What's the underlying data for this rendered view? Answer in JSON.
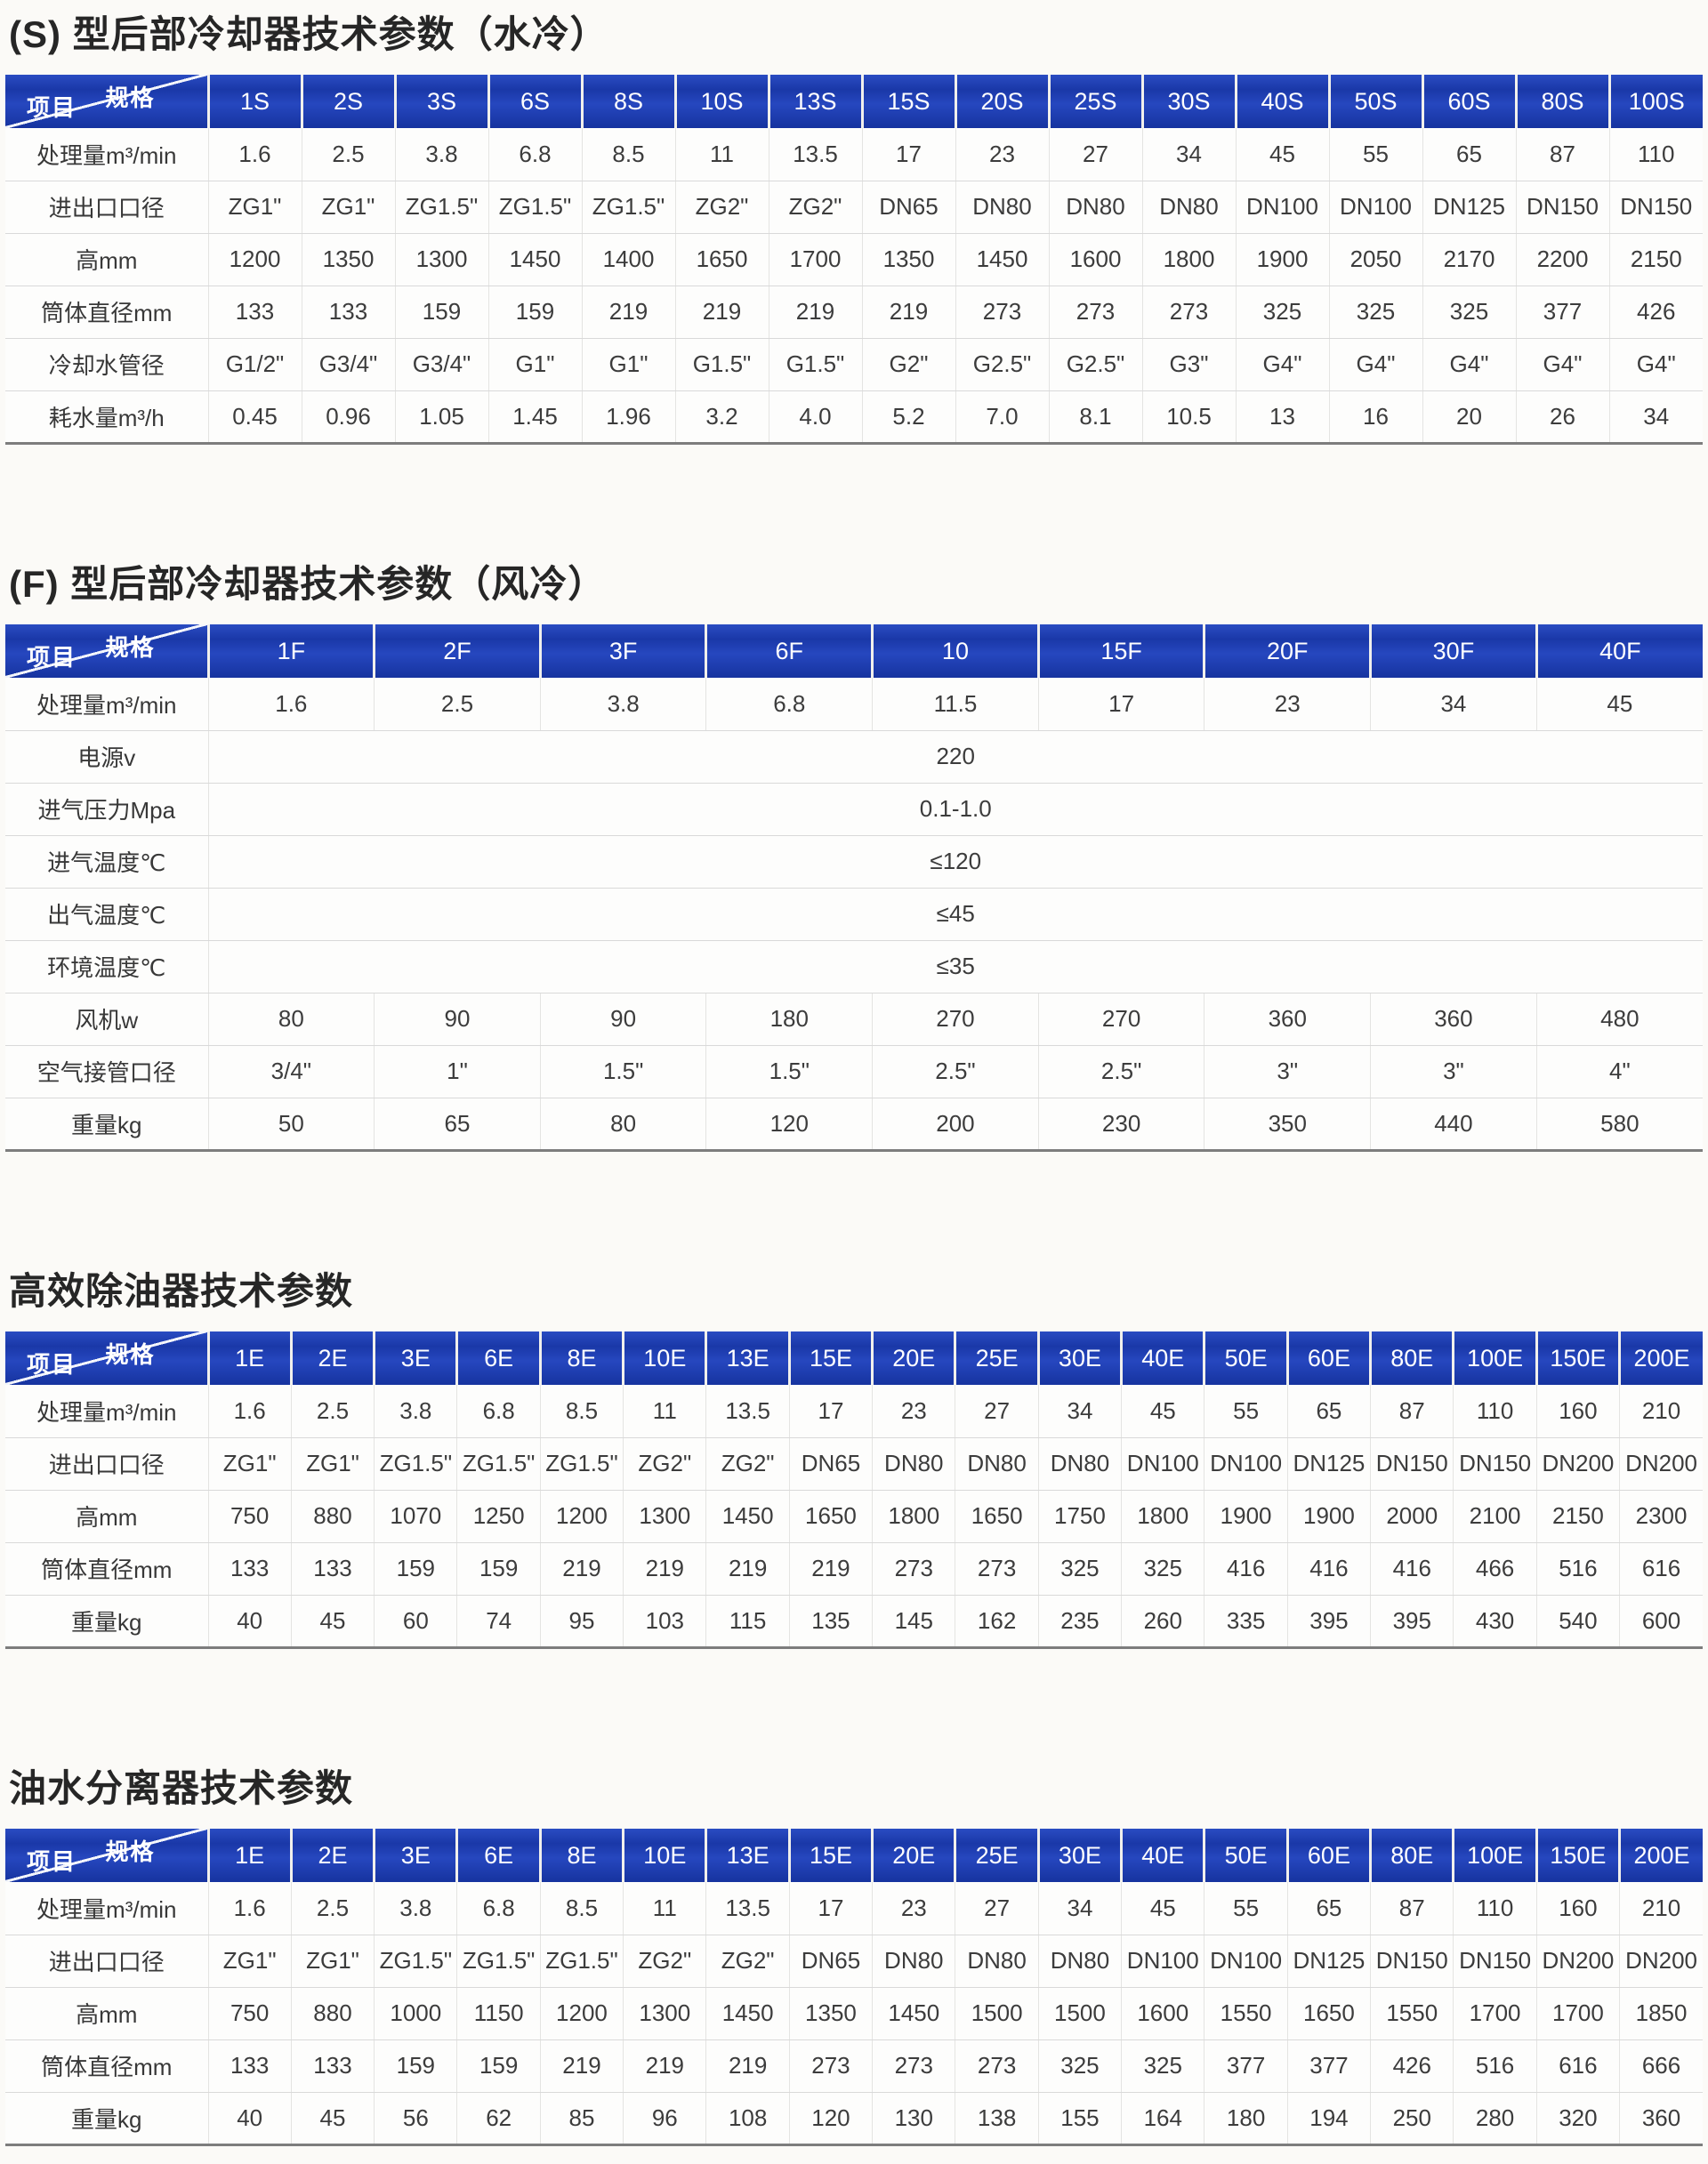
{
  "colors": {
    "header_blue": "#1c3db3",
    "header_text": "#ffffff",
    "body_text": "#3c3c3c",
    "title_text": "#262626"
  },
  "corner": {
    "top_right": "规格",
    "bottom_left": "项目"
  },
  "tables": [
    {
      "title": "(S) 型后部冷却器技术参数（水冷）",
      "columns": [
        "1S",
        "2S",
        "3S",
        "6S",
        "8S",
        "10S",
        "13S",
        "15S",
        "20S",
        "25S",
        "30S",
        "40S",
        "50S",
        "60S",
        "80S",
        "100S"
      ],
      "rows": [
        {
          "label": "处理量m³/min",
          "values": [
            "1.6",
            "2.5",
            "3.8",
            "6.8",
            "8.5",
            "11",
            "13.5",
            "17",
            "23",
            "27",
            "34",
            "45",
            "55",
            "65",
            "87",
            "110"
          ]
        },
        {
          "label": "进出口口径",
          "values": [
            "ZG1\"",
            "ZG1\"",
            "ZG1.5\"",
            "ZG1.5\"",
            "ZG1.5\"",
            "ZG2\"",
            "ZG2\"",
            "DN65",
            "DN80",
            "DN80",
            "DN80",
            "DN100",
            "DN100",
            "DN125",
            "DN150",
            "DN150"
          ]
        },
        {
          "label": "高mm",
          "values": [
            "1200",
            "1350",
            "1300",
            "1450",
            "1400",
            "1650",
            "1700",
            "1350",
            "1450",
            "1600",
            "1800",
            "1900",
            "2050",
            "2170",
            "2200",
            "2150"
          ]
        },
        {
          "label": "筒体直径mm",
          "values": [
            "133",
            "133",
            "159",
            "159",
            "219",
            "219",
            "219",
            "219",
            "273",
            "273",
            "273",
            "325",
            "325",
            "325",
            "377",
            "426"
          ]
        },
        {
          "label": "冷却水管径",
          "values": [
            "G1/2\"",
            "G3/4\"",
            "G3/4\"",
            "G1\"",
            "G1\"",
            "G1.5\"",
            "G1.5\"",
            "G2\"",
            "G2.5\"",
            "G2.5\"",
            "G3\"",
            "G4\"",
            "G4\"",
            "G4\"",
            "G4\"",
            "G4\""
          ]
        },
        {
          "label": "耗水量m³/h",
          "values": [
            "0.45",
            "0.96",
            "1.05",
            "1.45",
            "1.96",
            "3.2",
            "4.0",
            "5.2",
            "7.0",
            "8.1",
            "10.5",
            "13",
            "16",
            "20",
            "26",
            "34"
          ]
        }
      ]
    },
    {
      "title": "(F) 型后部冷却器技术参数（风冷）",
      "columns": [
        "1F",
        "2F",
        "3F",
        "6F",
        "10",
        "15F",
        "20F",
        "30F",
        "40F"
      ],
      "rows": [
        {
          "label": "处理量m³/min",
          "values": [
            "1.6",
            "2.5",
            "3.8",
            "6.8",
            "11.5",
            "17",
            "23",
            "34",
            "45"
          ]
        },
        {
          "label": "电源v",
          "merged_value": "220"
        },
        {
          "label": "进气压力Mpa",
          "merged_value": "0.1-1.0"
        },
        {
          "label": "进气温度℃",
          "merged_value": "≤120"
        },
        {
          "label": "出气温度℃",
          "merged_value": "≤45"
        },
        {
          "label": "环境温度℃",
          "merged_value": "≤35"
        },
        {
          "label": "风机w",
          "values": [
            "80",
            "90",
            "90",
            "180",
            "270",
            "270",
            "360",
            "360",
            "480"
          ]
        },
        {
          "label": "空气接管口径",
          "values": [
            "3/4\"",
            "1\"",
            "1.5\"",
            "1.5\"",
            "2.5\"",
            "2.5\"",
            "3\"",
            "3\"",
            "4\""
          ]
        },
        {
          "label": "重量kg",
          "values": [
            "50",
            "65",
            "80",
            "120",
            "200",
            "230",
            "350",
            "440",
            "580"
          ]
        }
      ]
    },
    {
      "title": "高效除油器技术参数",
      "columns": [
        "1E",
        "2E",
        "3E",
        "6E",
        "8E",
        "10E",
        "13E",
        "15E",
        "20E",
        "25E",
        "30E",
        "40E",
        "50E",
        "60E",
        "80E",
        "100E",
        "150E",
        "200E"
      ],
      "rows": [
        {
          "label": "处理量m³/min",
          "values": [
            "1.6",
            "2.5",
            "3.8",
            "6.8",
            "8.5",
            "11",
            "13.5",
            "17",
            "23",
            "27",
            "34",
            "45",
            "55",
            "65",
            "87",
            "110",
            "160",
            "210"
          ]
        },
        {
          "label": "进出口口径",
          "values": [
            "ZG1\"",
            "ZG1\"",
            "ZG1.5\"",
            "ZG1.5\"",
            "ZG1.5\"",
            "ZG2\"",
            "ZG2\"",
            "DN65",
            "DN80",
            "DN80",
            "DN80",
            "DN100",
            "DN100",
            "DN125",
            "DN150",
            "DN150",
            "DN200",
            "DN200"
          ]
        },
        {
          "label": "高mm",
          "values": [
            "750",
            "880",
            "1070",
            "1250",
            "1200",
            "1300",
            "1450",
            "1650",
            "1800",
            "1650",
            "1750",
            "1800",
            "1900",
            "1900",
            "2000",
            "2100",
            "2150",
            "2300"
          ]
        },
        {
          "label": "筒体直径mm",
          "values": [
            "133",
            "133",
            "159",
            "159",
            "219",
            "219",
            "219",
            "219",
            "273",
            "273",
            "325",
            "325",
            "416",
            "416",
            "416",
            "466",
            "516",
            "616"
          ]
        },
        {
          "label": "重量kg",
          "values": [
            "40",
            "45",
            "60",
            "74",
            "95",
            "103",
            "115",
            "135",
            "145",
            "162",
            "235",
            "260",
            "335",
            "395",
            "395",
            "430",
            "540",
            "600"
          ]
        }
      ]
    },
    {
      "title": "油水分离器技术参数",
      "columns": [
        "1E",
        "2E",
        "3E",
        "6E",
        "8E",
        "10E",
        "13E",
        "15E",
        "20E",
        "25E",
        "30E",
        "40E",
        "50E",
        "60E",
        "80E",
        "100E",
        "150E",
        "200E"
      ],
      "rows": [
        {
          "label": "处理量m³/min",
          "values": [
            "1.6",
            "2.5",
            "3.8",
            "6.8",
            "8.5",
            "11",
            "13.5",
            "17",
            "23",
            "27",
            "34",
            "45",
            "55",
            "65",
            "87",
            "110",
            "160",
            "210"
          ]
        },
        {
          "label": "进出口口径",
          "values": [
            "ZG1\"",
            "ZG1\"",
            "ZG1.5\"",
            "ZG1.5\"",
            "ZG1.5\"",
            "ZG2\"",
            "ZG2\"",
            "DN65",
            "DN80",
            "DN80",
            "DN80",
            "DN100",
            "DN100",
            "DN125",
            "DN150",
            "DN150",
            "DN200",
            "DN200"
          ]
        },
        {
          "label": "高mm",
          "values": [
            "750",
            "880",
            "1000",
            "1150",
            "1200",
            "1300",
            "1450",
            "1350",
            "1450",
            "1500",
            "1500",
            "1600",
            "1550",
            "1650",
            "1550",
            "1700",
            "1700",
            "1850"
          ]
        },
        {
          "label": "筒体直径mm",
          "values": [
            "133",
            "133",
            "159",
            "159",
            "219",
            "219",
            "219",
            "273",
            "273",
            "273",
            "325",
            "325",
            "377",
            "377",
            "426",
            "516",
            "616",
            "666"
          ]
        },
        {
          "label": "重量kg",
          "values": [
            "40",
            "45",
            "56",
            "62",
            "85",
            "96",
            "108",
            "120",
            "130",
            "138",
            "155",
            "164",
            "180",
            "194",
            "250",
            "280",
            "320",
            "360"
          ]
        }
      ]
    }
  ]
}
